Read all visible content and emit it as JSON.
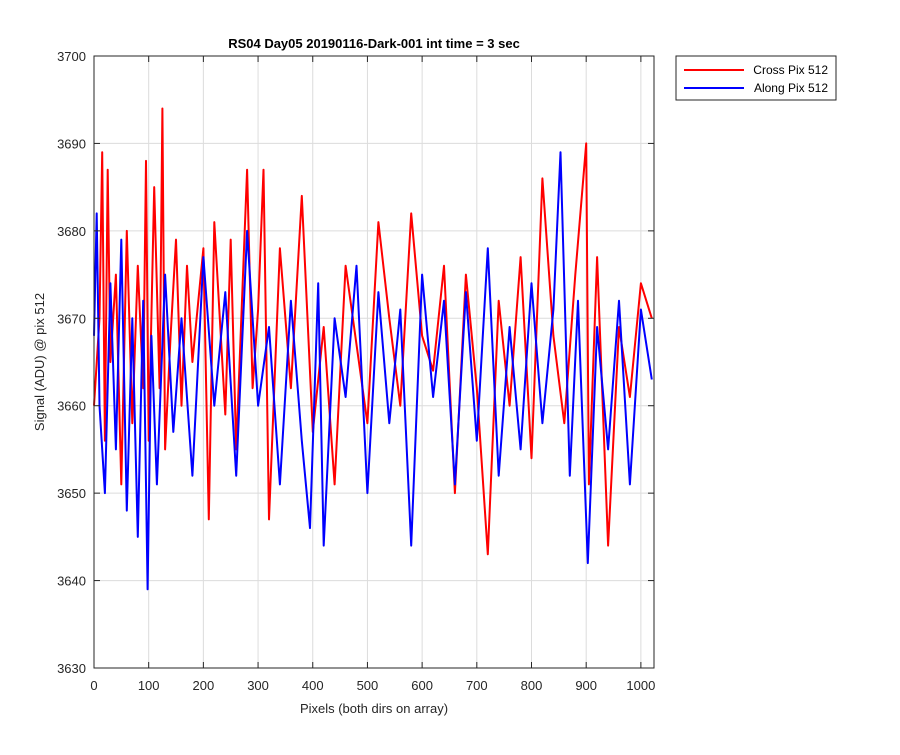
{
  "chart_data": {
    "type": "line",
    "title": "RS04 Day05 20190116-Dark-001 int time = 3 sec",
    "xlabel": "Pixels (both dirs on array)",
    "ylabel": "Signal (ADU) @ pix 512",
    "xlim": [
      0,
      1024
    ],
    "ylim": [
      3630,
      3700
    ],
    "xticks": [
      0,
      100,
      200,
      300,
      400,
      500,
      600,
      700,
      800,
      900,
      1000
    ],
    "yticks": [
      3630,
      3640,
      3650,
      3660,
      3670,
      3680,
      3690,
      3700
    ],
    "grid": true,
    "legend_position": "outside top-right",
    "series": [
      {
        "name": "Cross Pix 512",
        "color": "#ff0000",
        "x": [
          0,
          10,
          15,
          20,
          25,
          30,
          40,
          50,
          60,
          70,
          80,
          90,
          95,
          100,
          110,
          120,
          125,
          130,
          140,
          150,
          160,
          170,
          180,
          200,
          210,
          220,
          230,
          240,
          250,
          260,
          280,
          290,
          300,
          310,
          320,
          340,
          360,
          380,
          400,
          420,
          440,
          460,
          480,
          500,
          520,
          540,
          560,
          580,
          600,
          620,
          640,
          660,
          680,
          700,
          720,
          740,
          760,
          780,
          800,
          820,
          840,
          860,
          880,
          900,
          905,
          920,
          940,
          960,
          980,
          1000,
          1020
        ],
        "y": [
          3660,
          3670,
          3689,
          3656,
          3687,
          3665,
          3675,
          3651,
          3680,
          3658,
          3676,
          3662,
          3688,
          3656,
          3685,
          3662,
          3694,
          3655,
          3668,
          3679,
          3660,
          3676,
          3665,
          3678,
          3647,
          3681,
          3670,
          3659,
          3679,
          3655,
          3687,
          3662,
          3671,
          3687,
          3647,
          3678,
          3662,
          3684,
          3657,
          3669,
          3651,
          3676,
          3667,
          3658,
          3681,
          3670,
          3660,
          3682,
          3668,
          3664,
          3676,
          3650,
          3675,
          3662,
          3643,
          3672,
          3660,
          3677,
          3654,
          3686,
          3668,
          3658,
          3675,
          3690,
          3651,
          3677,
          3644,
          3669,
          3661,
          3674,
          3670
        ]
      },
      {
        "name": "Along Pix 512",
        "color": "#0000ff",
        "x": [
          0,
          5,
          10,
          20,
          30,
          40,
          50,
          60,
          70,
          80,
          90,
          98,
          105,
          115,
          130,
          145,
          160,
          180,
          200,
          220,
          240,
          260,
          280,
          300,
          320,
          340,
          360,
          380,
          395,
          410,
          420,
          440,
          460,
          480,
          500,
          520,
          540,
          560,
          580,
          600,
          620,
          640,
          660,
          680,
          700,
          720,
          740,
          760,
          780,
          800,
          820,
          840,
          853,
          870,
          885,
          903,
          920,
          940,
          960,
          980,
          1000,
          1020
        ],
        "y": [
          3668,
          3682,
          3660,
          3650,
          3674,
          3655,
          3679,
          3648,
          3670,
          3645,
          3672,
          3639,
          3668,
          3651,
          3675,
          3657,
          3670,
          3652,
          3677,
          3660,
          3673,
          3652,
          3680,
          3660,
          3669,
          3651,
          3672,
          3656,
          3646,
          3674,
          3644,
          3670,
          3661,
          3676,
          3650,
          3673,
          3658,
          3671,
          3644,
          3675,
          3661,
          3672,
          3651,
          3673,
          3656,
          3678,
          3652,
          3669,
          3655,
          3674,
          3658,
          3671,
          3689,
          3652,
          3672,
          3642,
          3669,
          3655,
          3672,
          3651,
          3671,
          3663
        ]
      }
    ]
  }
}
